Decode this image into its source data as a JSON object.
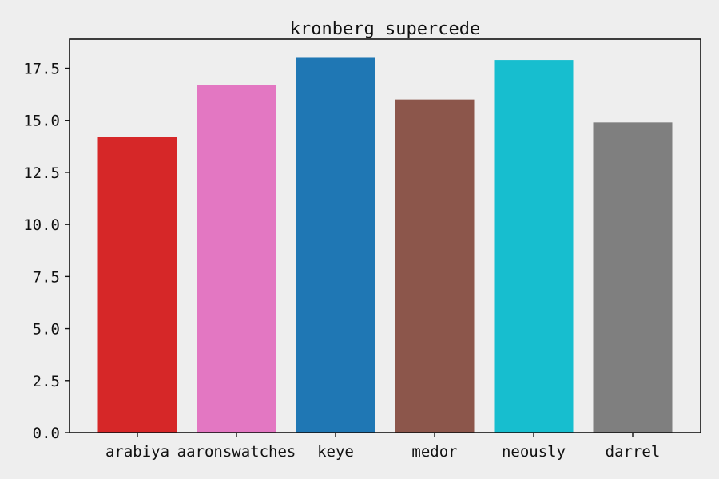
{
  "chart_data": {
    "type": "bar",
    "title": "kronberg supercede",
    "xlabel": "",
    "ylabel": "",
    "categories": [
      "arabiya",
      "aaronswatches",
      "keye",
      "medor",
      "neously",
      "darrel"
    ],
    "values": [
      14.2,
      16.7,
      18.0,
      16.0,
      17.9,
      14.9
    ],
    "colors": [
      "#d62728",
      "#e377c2",
      "#1f77b4",
      "#8c564b",
      "#17becf",
      "#7f7f7f"
    ],
    "ylim": [
      0,
      18.9
    ],
    "yticks": [
      0.0,
      2.5,
      5.0,
      7.5,
      10.0,
      12.5,
      15.0,
      17.5
    ],
    "ytick_labels": [
      "0.0",
      "2.5",
      "5.0",
      "7.5",
      "10.0",
      "12.5",
      "15.0",
      "17.5"
    ],
    "grid": false,
    "legend": "none",
    "background": "#eeeeee"
  }
}
